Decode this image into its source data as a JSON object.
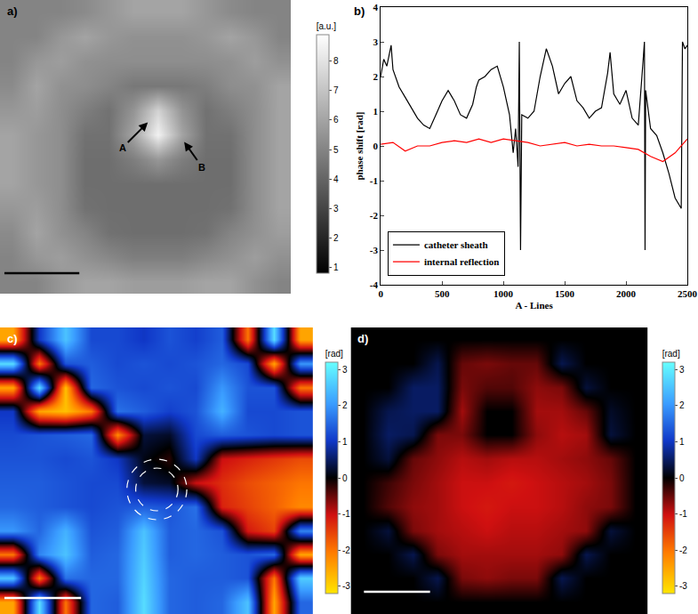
{
  "chart_data": [
    {
      "type": "heatmap",
      "label": "a)",
      "color": "gray",
      "tick_labels": false,
      "annotations": [
        "A",
        "B"
      ],
      "colorbar": {
        "title": "[a.u.]",
        "range": [
          0.8,
          8.9
        ],
        "ticks": [
          1,
          2,
          3,
          4,
          5,
          6,
          7,
          8
        ]
      },
      "z": [
        [
          5,
          5,
          5,
          5.2,
          5.6,
          6,
          6,
          6,
          5.6,
          5.2,
          5,
          5
        ],
        [
          5,
          5,
          5.6,
          6,
          5.6,
          5.4,
          5.4,
          5.4,
          5.6,
          6,
          5.6,
          5
        ],
        [
          5,
          5.6,
          5.8,
          5.4,
          5.3,
          5.3,
          5.3,
          5.3,
          5.3,
          5.4,
          5.8,
          5.4
        ],
        [
          5.2,
          6,
          5.4,
          5.3,
          5.0,
          4.6,
          4.6,
          4.6,
          4.8,
          5.3,
          5.4,
          6
        ],
        [
          5.6,
          5.8,
          5.3,
          4.8,
          4.4,
          5.5,
          7.5,
          5.5,
          4.4,
          4.8,
          5.3,
          6
        ],
        [
          6,
          5.6,
          5.3,
          4.4,
          4.4,
          6,
          8.5,
          6,
          4.4,
          4.4,
          5.3,
          6
        ],
        [
          6,
          5.6,
          5.3,
          4.3,
          4.3,
          4.8,
          5.6,
          4.8,
          4.3,
          4.3,
          5.3,
          6
        ],
        [
          6,
          5.6,
          5.3,
          4.3,
          4.3,
          4.3,
          4.3,
          4.3,
          4.3,
          4.3,
          5.3,
          6
        ],
        [
          5.6,
          5.8,
          5.3,
          4.4,
          4.3,
          4.3,
          4.3,
          4.3,
          4.3,
          4.4,
          5.3,
          6
        ],
        [
          5.2,
          6,
          5.4,
          5.0,
          4.4,
          4.3,
          4.3,
          4.3,
          4.4,
          5.0,
          5.4,
          5.8
        ],
        [
          5,
          5.6,
          5.8,
          5.4,
          5.1,
          4.8,
          4.8,
          4.8,
          5.1,
          5.4,
          5.8,
          5.4
        ],
        [
          5,
          5,
          5.6,
          6,
          6,
          5.8,
          5.8,
          5.8,
          6,
          6,
          5.4,
          5
        ]
      ]
    },
    {
      "type": "line",
      "label": "b)",
      "x_label": "A - Lines",
      "y_label": "phase shift [rad]",
      "xlim": [
        0,
        2500
      ],
      "xticks": [
        0,
        500,
        1000,
        1500,
        2000,
        2500
      ],
      "ylim": [
        -4,
        4
      ],
      "yticks": [
        -4,
        -3,
        -2,
        -1,
        0,
        1,
        2,
        3,
        4
      ],
      "grid": false,
      "legend": "lower left",
      "series": [
        {
          "name": "catheter sheath",
          "color": "#000000",
          "x": [
            0,
            25,
            50,
            75,
            85,
            100,
            150,
            200,
            250,
            300,
            350,
            400,
            450,
            500,
            550,
            600,
            650,
            700,
            750,
            780,
            800,
            850,
            900,
            950,
            1000,
            1050,
            1080,
            1100,
            1120,
            1130,
            1140,
            1150,
            1200,
            1250,
            1300,
            1350,
            1400,
            1450,
            1500,
            1550,
            1600,
            1650,
            1700,
            1750,
            1800,
            1850,
            1870,
            1900,
            1950,
            2000,
            2050,
            2100,
            2140,
            2150,
            2155,
            2160,
            2200,
            2250,
            2300,
            2350,
            2400,
            2450,
            2460,
            2480,
            2500
          ],
          "values": [
            2.0,
            2.5,
            2.3,
            2.7,
            2.9,
            2.2,
            1.7,
            1.4,
            1.1,
            0.8,
            0.6,
            0.5,
            0.9,
            1.3,
            1.6,
            1.3,
            0.9,
            0.8,
            1.2,
            1.7,
            1.9,
            2.0,
            2.2,
            2.3,
            1.7,
            0.9,
            -0.2,
            0.5,
            -0.6,
            3.0,
            -3.0,
            0.9,
            0.8,
            1.0,
            2.0,
            2.8,
            2.3,
            1.5,
            1.8,
            2.0,
            1.3,
            1.1,
            0.8,
            1.0,
            1.1,
            2.1,
            2.7,
            1.5,
            1.2,
            1.6,
            0.8,
            0.6,
            2.5,
            3.0,
            -3.0,
            1.6,
            0.5,
            0.3,
            -0.2,
            -0.8,
            -1.5,
            -1.8,
            3.0,
            2.8,
            2.9
          ]
        },
        {
          "name": "internal reflection",
          "color": "#ff0000",
          "x": [
            0,
            100,
            200,
            300,
            400,
            500,
            600,
            700,
            800,
            900,
            1000,
            1100,
            1200,
            1300,
            1400,
            1500,
            1600,
            1700,
            1800,
            1900,
            2000,
            2100,
            2200,
            2300,
            2400,
            2500
          ],
          "values": [
            0.05,
            0.1,
            -0.15,
            0.0,
            0.0,
            0.1,
            0.15,
            0.1,
            0.2,
            0.1,
            0.2,
            0.15,
            0.1,
            0.0,
            0.05,
            0.1,
            0.0,
            0.05,
            0.0,
            0.0,
            -0.05,
            -0.1,
            -0.3,
            -0.45,
            -0.2,
            0.2
          ]
        }
      ]
    },
    {
      "type": "heatmap",
      "label": "c)",
      "color": "phase",
      "tick_labels": false,
      "colorbar": {
        "title": "[rad]",
        "range": [
          -3.2,
          3.2
        ],
        "ticks": [
          -3,
          -2,
          -1,
          0,
          1,
          2,
          3
        ]
      },
      "z": [
        [
          -2.5,
          1,
          2.5,
          1.2,
          1.2,
          1.0,
          1.3,
          1.1,
          1.4,
          -2,
          2.8,
          -2.5
        ],
        [
          2.8,
          -2,
          1.3,
          1.4,
          1.2,
          1.3,
          1.2,
          1.3,
          1.5,
          1.2,
          -2.5,
          2
        ],
        [
          -2.5,
          2.8,
          -2.8,
          1.5,
          1.3,
          1.2,
          1.3,
          1.2,
          2,
          1.3,
          1.3,
          -2
        ],
        [
          1.0,
          -2.5,
          -2.8,
          -2.0,
          1.6,
          1.4,
          1.1,
          1.3,
          2.3,
          1.2,
          1.2,
          1.3
        ],
        [
          1.2,
          1.3,
          1.4,
          1.5,
          -2.2,
          0.3,
          0.2,
          1.2,
          1.4,
          1.3,
          1.2,
          1.3
        ],
        [
          1.3,
          1.3,
          1.2,
          1.3,
          1.0,
          0.1,
          -0.2,
          1.0,
          -1.0,
          -1.2,
          -1.4,
          -1.6
        ],
        [
          1.4,
          1.4,
          1.3,
          1.2,
          1.2,
          0.3,
          0.2,
          -1,
          -1.3,
          -1.6,
          -1.8,
          -2.0
        ],
        [
          1.5,
          1.4,
          1.3,
          1.2,
          1.3,
          1.4,
          1.3,
          1.6,
          -1.2,
          -1.5,
          -1.8,
          -2.2
        ],
        [
          2,
          1.5,
          2.3,
          1.3,
          1.4,
          2.5,
          1.4,
          1.5,
          1.3,
          -1.1,
          -1.5,
          1.8
        ],
        [
          -2,
          1.8,
          2.5,
          1.4,
          1.5,
          2.6,
          1.4,
          1.5,
          1.4,
          1.3,
          1.5,
          -2.5
        ],
        [
          2.5,
          -2.0,
          1.6,
          1.5,
          1.5,
          2.7,
          1.5,
          1.4,
          1.4,
          1.3,
          -2,
          2.6
        ],
        [
          -2.5,
          2.8,
          -2.0,
          1.5,
          1.4,
          2.8,
          1.5,
          1.4,
          1.5,
          2.5,
          -2.5,
          1.5
        ]
      ]
    },
    {
      "type": "heatmap",
      "label": "d)",
      "color": "phase",
      "tick_labels": false,
      "colorbar": {
        "title": "[rad]",
        "range": [
          -3.2,
          3.2
        ],
        "ticks": [
          -3,
          -2,
          -1,
          0,
          1,
          2,
          3
        ]
      },
      "z": [
        [
          0,
          0,
          0,
          0,
          0,
          0,
          0,
          0,
          0,
          0,
          0,
          0
        ],
        [
          0,
          0,
          0,
          0.4,
          -0.5,
          -0.6,
          -0.5,
          -0.5,
          0.4,
          0,
          0,
          0
        ],
        [
          0,
          0,
          0.5,
          0.5,
          -0.6,
          -0.4,
          -0.4,
          -0.7,
          -0.6,
          0.3,
          0,
          0
        ],
        [
          0,
          0.4,
          0.5,
          0.5,
          -0.8,
          0,
          0,
          -0.8,
          -0.8,
          -0.5,
          0.2,
          0
        ],
        [
          0,
          0.5,
          0.4,
          -0.6,
          -0.6,
          0,
          0,
          -0.7,
          -0.9,
          -0.8,
          0.3,
          0
        ],
        [
          0,
          0.3,
          -0.5,
          -0.7,
          -0.9,
          -0.8,
          -0.9,
          -0.9,
          -0.8,
          -0.7,
          -0.5,
          0
        ],
        [
          0,
          -0.3,
          -0.6,
          -0.8,
          -1.0,
          -1.0,
          -1.1,
          -1.0,
          -0.9,
          -0.8,
          -0.6,
          0
        ],
        [
          0,
          -0.4,
          -0.7,
          -0.8,
          -1.0,
          -1.1,
          -1.0,
          -1.0,
          -0.9,
          -0.7,
          -0.6,
          0
        ],
        [
          0,
          0.3,
          -0.6,
          -0.8,
          -0.9,
          -1.0,
          -0.9,
          -0.9,
          -0.8,
          -0.7,
          0.3,
          0
        ],
        [
          0,
          0,
          0.4,
          -0.6,
          -0.8,
          -0.8,
          -0.8,
          -0.8,
          -0.7,
          0.4,
          0,
          0
        ],
        [
          0,
          0,
          0,
          0.4,
          -0.6,
          -0.7,
          -0.6,
          -0.6,
          0.4,
          0,
          0,
          0
        ],
        [
          0,
          0,
          0,
          0,
          0,
          0,
          0,
          0,
          0,
          0,
          0,
          0
        ]
      ]
    }
  ]
}
